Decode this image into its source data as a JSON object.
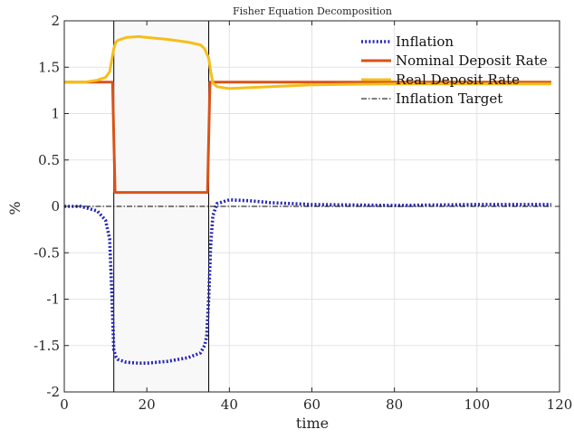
{
  "chart_data": {
    "type": "line",
    "title": "Fisher Equation Decomposition",
    "xlabel": "time",
    "ylabel": "%",
    "xlim": [
      0,
      120
    ],
    "ylim": [
      -2,
      2
    ],
    "xticks": [
      0,
      20,
      40,
      60,
      80,
      100,
      120
    ],
    "yticks": [
      -2,
      -1.5,
      -1,
      -0.5,
      0,
      0.5,
      1,
      1.5,
      2
    ],
    "grid": true,
    "legend_position": "top-right",
    "shaded_region": {
      "x": [
        12,
        35
      ],
      "color": "#f8f8f8"
    },
    "series": [
      {
        "name": "Inflation",
        "color": "#2626b8",
        "style": "dotted",
        "x": [
          0,
          4,
          8,
          10,
          11,
          11.5,
          12,
          12.5,
          13,
          15,
          18,
          20,
          25,
          30,
          33,
          34,
          34.5,
          35,
          35.5,
          36,
          37,
          40,
          45,
          50,
          60,
          80,
          100,
          118
        ],
        "y": [
          0,
          0,
          -0.05,
          -0.15,
          -0.35,
          -0.9,
          -1.55,
          -1.62,
          -1.65,
          -1.68,
          -1.69,
          -1.69,
          -1.67,
          -1.63,
          -1.58,
          -1.5,
          -1.4,
          -1.0,
          -0.4,
          -0.1,
          0.03,
          0.07,
          0.06,
          0.04,
          0.02,
          0.01,
          0.02,
          0.02
        ]
      },
      {
        "name": "Nominal Deposit Rate",
        "color": "#d95319",
        "style": "solid",
        "x": [
          0,
          11.7,
          12.3,
          34.7,
          35.3,
          118
        ],
        "y": [
          1.34,
          1.34,
          0.15,
          0.15,
          1.34,
          1.34
        ]
      },
      {
        "name": "Real Deposit Rate",
        "color": "#f5be1a",
        "style": "solid",
        "x": [
          0,
          5,
          8,
          10,
          11,
          12,
          12.5,
          13,
          15,
          18,
          20,
          25,
          30,
          33,
          34,
          35,
          35.5,
          36,
          37,
          40,
          45,
          50,
          60,
          80,
          100,
          118
        ],
        "y": [
          1.34,
          1.34,
          1.36,
          1.39,
          1.45,
          1.7,
          1.77,
          1.79,
          1.82,
          1.83,
          1.82,
          1.8,
          1.77,
          1.74,
          1.7,
          1.6,
          1.45,
          1.33,
          1.29,
          1.27,
          1.28,
          1.29,
          1.31,
          1.32,
          1.32,
          1.32
        ]
      },
      {
        "name": "Inflation Target",
        "color": "#000000",
        "style": "dashdot",
        "x": [
          0,
          118
        ],
        "y": [
          0,
          0
        ]
      }
    ]
  }
}
